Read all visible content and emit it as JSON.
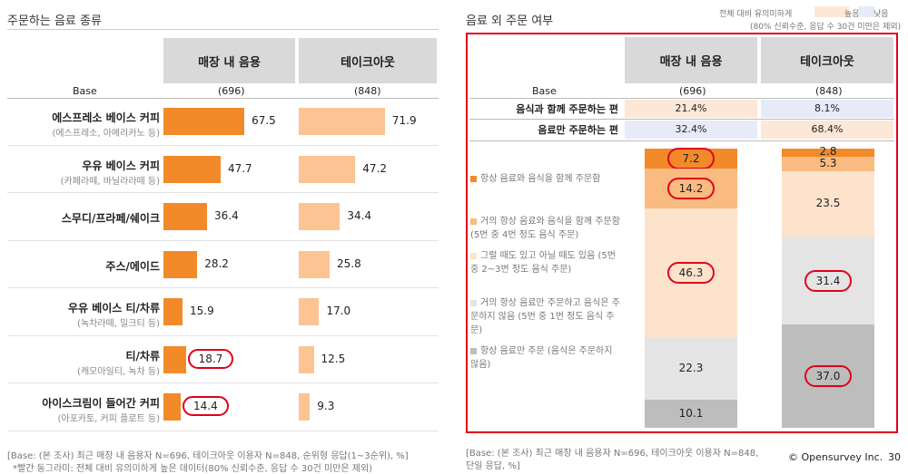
{
  "left": {
    "title": "주문하는 음료 종류",
    "columns": [
      "매장 내 음용",
      "테이크아웃"
    ],
    "base_label": "Base",
    "bases": [
      "(696)",
      "(848)"
    ],
    "categories": [
      {
        "label": "에스프레소 베이스 커피",
        "sub": "(에스프레소, 아메리카노 등)",
        "instore": 67.5,
        "takeout": 71.9
      },
      {
        "label": "우유 베이스 커피",
        "sub": "(카페라떼, 바닐라라떼 등)",
        "instore": 47.7,
        "takeout": 47.2
      },
      {
        "label": "스무디/프라페/쉐이크",
        "sub": "",
        "instore": 36.4,
        "takeout": 34.4
      },
      {
        "label": "주스/에이드",
        "sub": "",
        "instore": 28.2,
        "takeout": 25.8
      },
      {
        "label": "우유 베이스 티/차류",
        "sub": "(녹차라떼, 밀크티 등)",
        "instore": 15.9,
        "takeout": 17.0
      },
      {
        "label": "티/차류",
        "sub": "(캐모마일티, 녹차 등)",
        "instore": 18.7,
        "takeout": 12.5
      },
      {
        "label": "아이스크림이 들어간 커피",
        "sub": "(아포카토, 커피 플로트 등)",
        "instore": 14.4,
        "takeout": 9.3
      }
    ],
    "display_values": {
      "instore": [
        "67.5",
        "47.7",
        "36.4",
        "28.2",
        "15.9",
        "18.7",
        "14.4"
      ],
      "takeout": [
        "71.9",
        "47.2",
        "34.4",
        "25.8",
        "17.0",
        "12.5",
        "9.3"
      ]
    },
    "note1": "[Base: (본 조사) 최근 매장 내 음용자 N=696, 테이크아웃 이용자 N=848, 순위형 응답(1~3순위), %]",
    "note2": "*빨간 동그라미: 전체 대비 유의미하게 높은 데이터(80% 신뢰수준, 응답 수 30건 미만은 제외)"
  },
  "right": {
    "title": "음료 외 주문 여부",
    "legend_caption": "전체 대비 유의미하게",
    "legend_high": "높음",
    "legend_low": "낮음",
    "legend_note": "(80% 신뢰수준, 응답 수 30건 미만은 제외)",
    "columns": [
      "매장 내 음용",
      "테이크아웃"
    ],
    "base_label": "Base",
    "bases": [
      "(696)",
      "(848)"
    ],
    "summary_rows": [
      {
        "label": "음식과 함께 주문하는 편",
        "instore": "21.4%",
        "takeout": "8.1%"
      },
      {
        "label": "음료만 주문하는 편",
        "instore": "32.4%",
        "takeout": "68.4%"
      }
    ],
    "legend_items": [
      "항상 음료와 음식을 함께 주문함",
      "거의 항상 음료와 음식을 함께 주문함 (5번 중 4번 정도 음식 주문)",
      "그럴 때도 있고 아닐 때도 있음 (5번 중 2~3번 정도 음식 주문)",
      "거의 항상 음료만 주문하고 음식은 주문하지 않음 (5번 중 1번 정도 음식 주문)",
      "항상 음료만 주문 (음식은 주문하지 않음)"
    ],
    "note": "[Base: (본 조사) 최근 매장 내 음용자 N=696, 테이크아웃 이용자 N=848, 단일 응답, %]"
  },
  "footer": {
    "brand": "© Opensurvey Inc.",
    "page": "30"
  },
  "chart_data": [
    {
      "type": "bar",
      "title": "주문하는 음료 종류",
      "categories": [
        "에스프레소 베이스 커피",
        "우유 베이스 커피",
        "스무디/프라페/쉐이크",
        "주스/에이드",
        "우유 베이스 티/차류",
        "티/차류",
        "아이스크림이 들어간 커피"
      ],
      "series": [
        {
          "name": "매장 내 음용",
          "values": [
            67.5,
            47.7,
            36.4,
            28.2,
            15.9,
            18.7,
            14.4
          ]
        },
        {
          "name": "테이크아웃",
          "values": [
            71.9,
            47.2,
            34.4,
            25.8,
            17.0,
            12.5,
            9.3
          ]
        }
      ],
      "highlighted": {
        "매장 내 음용": [
          "티/차류",
          "아이스크림이 들어간 커피"
        ]
      },
      "xlabel": "",
      "ylabel": "%"
    },
    {
      "type": "bar",
      "stacked": true,
      "title": "음료 외 주문 여부",
      "categories": [
        "매장 내 음용",
        "테이크아웃"
      ],
      "series": [
        {
          "name": "항상 음료와 음식을 함께 주문함",
          "values": [
            7.2,
            2.8
          ]
        },
        {
          "name": "거의 항상 음료와 음식을 함께 주문함",
          "values": [
            14.2,
            5.3
          ]
        },
        {
          "name": "그럴 때도 있고 아닐 때도 있음",
          "values": [
            46.3,
            23.5
          ]
        },
        {
          "name": "거의 항상 음료만 주문하고 음식은 주문하지 않음",
          "values": [
            22.3,
            31.4
          ]
        },
        {
          "name": "항상 음료만 주문",
          "values": [
            10.1,
            37.0
          ]
        }
      ],
      "display_values": [
        [
          "7.2",
          "14.2",
          "46.3",
          "22.3",
          "10.1"
        ],
        [
          "2.8",
          "5.3",
          "23.5",
          "31.4",
          "37.0"
        ]
      ],
      "highlighted": {
        "매장 내 음용": [
          "7.2",
          "14.2",
          "46.3"
        ],
        "테이크아웃": [
          "31.4",
          "37.0"
        ]
      },
      "ylim": [
        0,
        100
      ]
    }
  ]
}
